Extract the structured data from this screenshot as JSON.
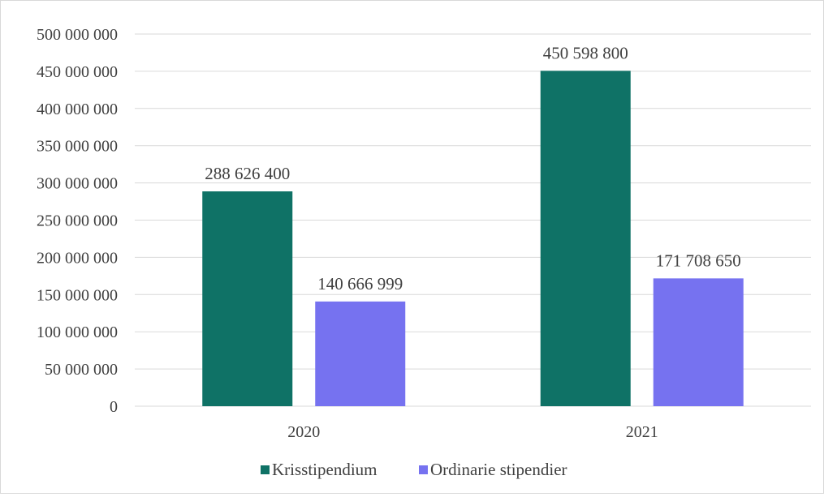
{
  "chart_data": {
    "type": "bar",
    "title": "",
    "xlabel": "",
    "ylabel": "",
    "categories": [
      "2020",
      "2021"
    ],
    "series": [
      {
        "name": "Krisstipendium",
        "color": "#0f7266",
        "values": [
          288626400,
          450598800
        ],
        "labels": [
          "288 626 400",
          "450 598 800"
        ]
      },
      {
        "name": "Ordinarie stipendier",
        "color": "#7672f0",
        "values": [
          140666999,
          171708650
        ],
        "labels": [
          "140 666 999",
          "171 708 650"
        ]
      }
    ],
    "ylim": [
      0,
      500000000
    ],
    "yticks": [
      0,
      50000000,
      100000000,
      150000000,
      200000000,
      250000000,
      300000000,
      350000000,
      400000000,
      450000000,
      500000000
    ],
    "ytick_labels": [
      "0",
      "50 000 000",
      "100 000 000",
      "150 000 000",
      "200 000 000",
      "250 000 000",
      "300 000 000",
      "350 000 000",
      "400 000 000",
      "450 000 000",
      "500 000 000"
    ],
    "grid": true,
    "gridline_color": "#d9d9d9",
    "legend_position": "bottom"
  }
}
